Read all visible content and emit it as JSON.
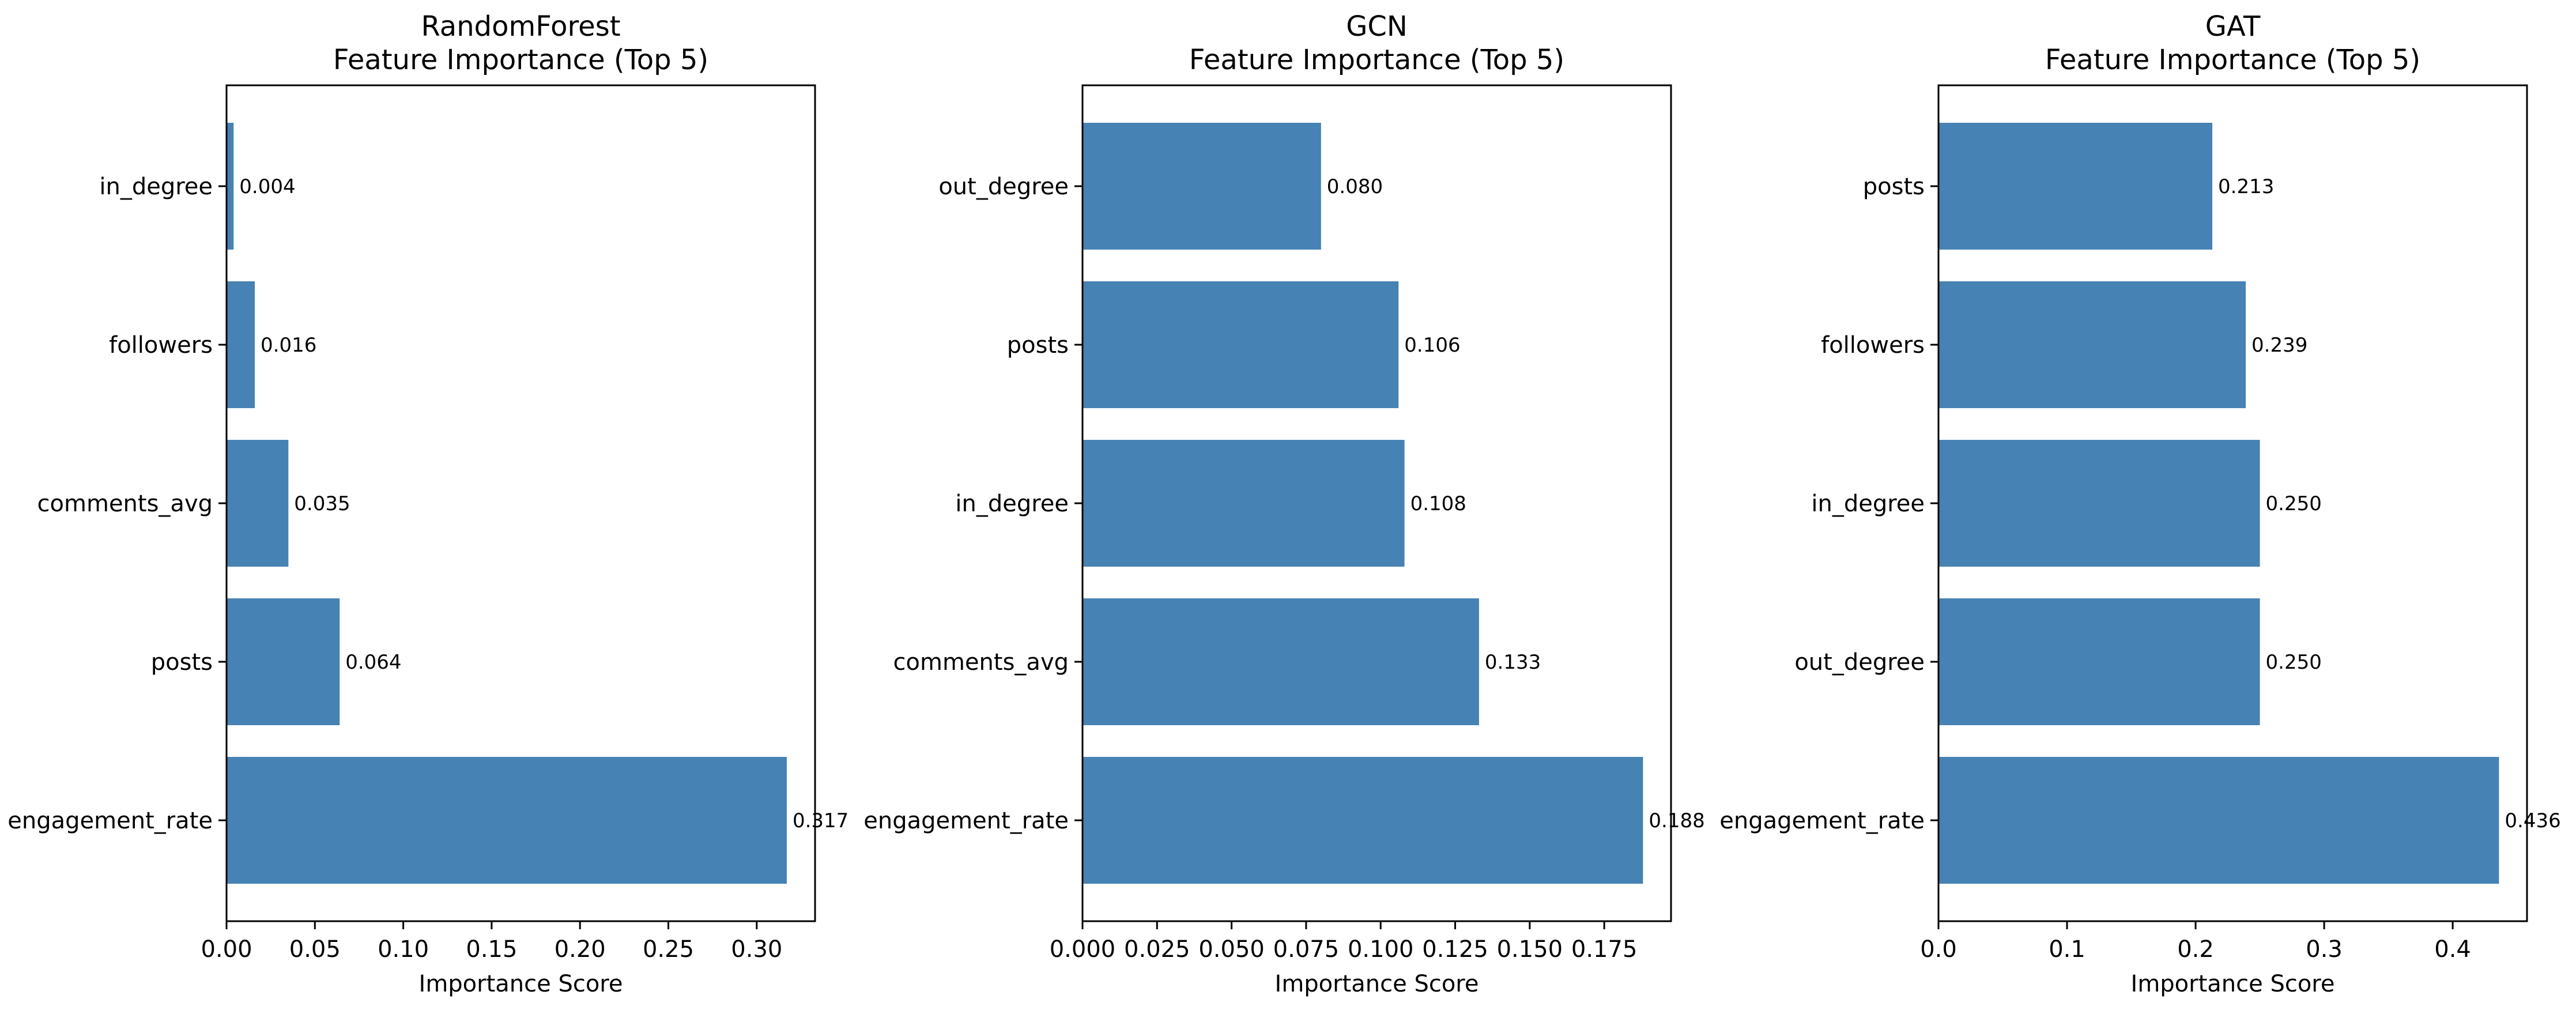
{
  "chart_data": [
    {
      "type": "bar",
      "orientation": "horizontal",
      "title": "RandomForest\nFeature Importance (Top 5)",
      "xlabel": "Importance Score",
      "ylabel": "",
      "categories": [
        "engagement_rate",
        "posts",
        "comments_avg",
        "followers",
        "in_degree"
      ],
      "values": [
        0.317,
        0.064,
        0.035,
        0.016,
        0.004
      ],
      "data_labels": [
        "0.317",
        "0.064",
        "0.035",
        "0.016",
        "0.004"
      ],
      "xlim": [
        0,
        0.333
      ],
      "xticks": [
        0.0,
        0.05,
        0.1,
        0.15,
        0.2,
        0.25,
        0.3
      ],
      "xtick_labels": [
        "0.00",
        "0.05",
        "0.10",
        "0.15",
        "0.20",
        "0.25",
        "0.30"
      ],
      "bar_color": "#4682b4",
      "grid": false,
      "legend": "none"
    },
    {
      "type": "bar",
      "orientation": "horizontal",
      "title": "GCN\nFeature Importance (Top 5)",
      "xlabel": "Importance Score",
      "ylabel": "",
      "categories": [
        "engagement_rate",
        "comments_avg",
        "in_degree",
        "posts",
        "out_degree"
      ],
      "values": [
        0.188,
        0.133,
        0.108,
        0.106,
        0.08
      ],
      "data_labels": [
        "0.188",
        "0.133",
        "0.108",
        "0.106",
        "0.080"
      ],
      "xlim": [
        0,
        0.1974
      ],
      "xticks": [
        0.0,
        0.025,
        0.05,
        0.075,
        0.1,
        0.125,
        0.15,
        0.175
      ],
      "xtick_labels": [
        "0.000",
        "0.025",
        "0.050",
        "0.075",
        "0.100",
        "0.125",
        "0.150",
        "0.175"
      ],
      "bar_color": "#4682b4",
      "grid": false,
      "legend": "none"
    },
    {
      "type": "bar",
      "orientation": "horizontal",
      "title": "GAT\nFeature Importance (Top 5)",
      "xlabel": "Importance Score",
      "ylabel": "",
      "categories": [
        "engagement_rate",
        "out_degree",
        "in_degree",
        "followers",
        "posts"
      ],
      "values": [
        0.436,
        0.25,
        0.25,
        0.239,
        0.213
      ],
      "data_labels": [
        "0.436",
        "0.250",
        "0.250",
        "0.239",
        "0.213"
      ],
      "xlim": [
        0,
        0.4578
      ],
      "xticks": [
        0.0,
        0.1,
        0.2,
        0.3,
        0.4
      ],
      "xtick_labels": [
        "0.0",
        "0.1",
        "0.2",
        "0.3",
        "0.4"
      ],
      "bar_color": "#4682b4",
      "grid": false,
      "legend": "none"
    }
  ]
}
